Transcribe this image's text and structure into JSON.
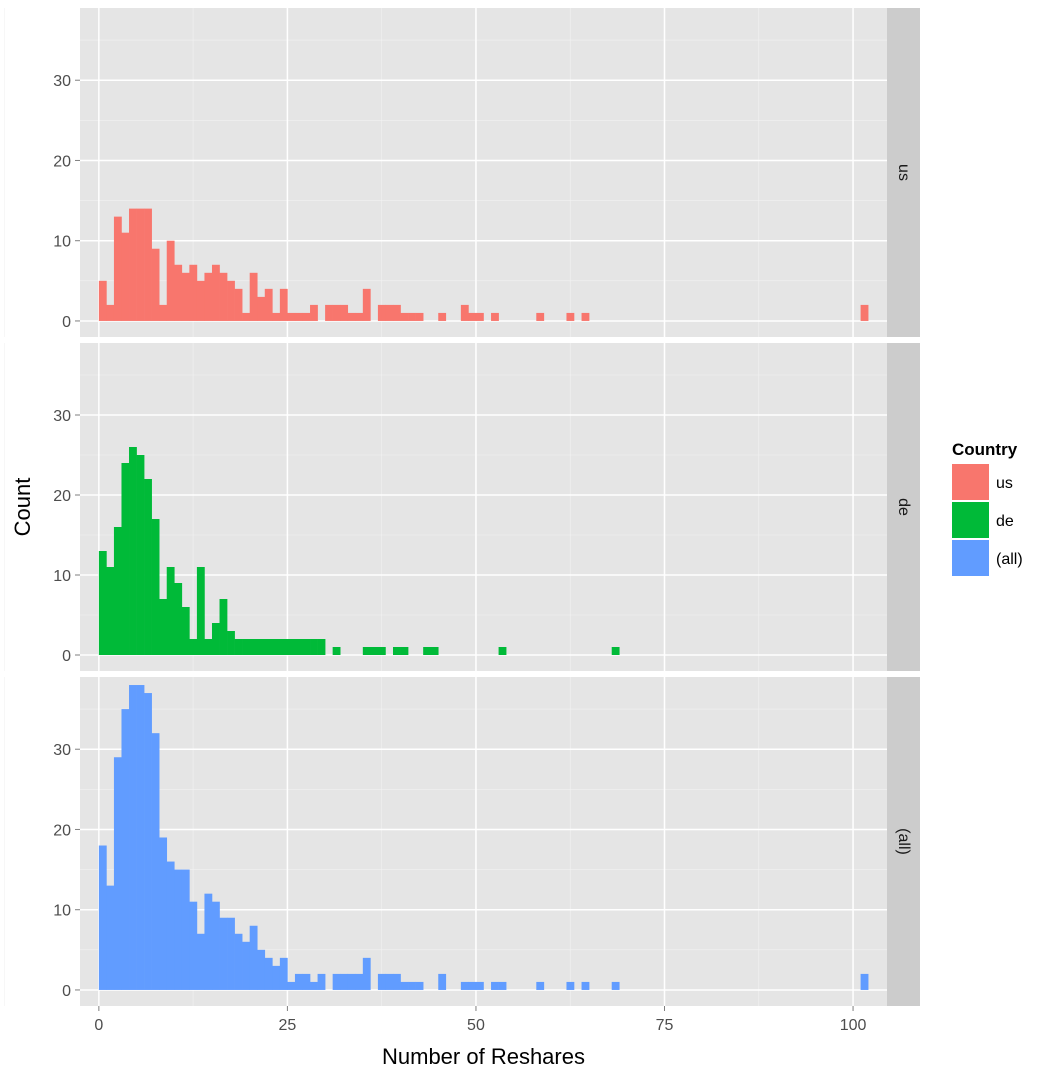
{
  "chart_data": {
    "type": "bar",
    "subtype": "faceted-histogram",
    "xlabel": "Number of Reshares",
    "ylabel": "Count",
    "xlim": [
      -2.5,
      104.5
    ],
    "ylim": [
      -2,
      39
    ],
    "x_ticks": [
      0,
      25,
      50,
      75,
      100
    ],
    "y_ticks": [
      0,
      10,
      20,
      30
    ],
    "bin_width": 1,
    "grid": true,
    "legend": {
      "title": "Country",
      "position": "right",
      "entries": [
        {
          "label": "us",
          "color": "#F8766D"
        },
        {
          "label": "de",
          "color": "#00BA38"
        },
        {
          "label": "(all)",
          "color": "#619CFF"
        }
      ]
    },
    "panels": [
      {
        "strip": "us",
        "color": "#F8766D",
        "bins": [
          [
            0,
            5
          ],
          [
            1,
            2
          ],
          [
            2,
            13
          ],
          [
            3,
            11
          ],
          [
            4,
            14
          ],
          [
            5,
            14
          ],
          [
            6,
            14
          ],
          [
            7,
            9
          ],
          [
            8,
            2
          ],
          [
            9,
            10
          ],
          [
            10,
            7
          ],
          [
            11,
            6
          ],
          [
            12,
            7
          ],
          [
            13,
            5
          ],
          [
            14,
            6
          ],
          [
            15,
            7
          ],
          [
            16,
            6
          ],
          [
            17,
            5
          ],
          [
            18,
            4
          ],
          [
            19,
            1
          ],
          [
            20,
            6
          ],
          [
            21,
            3
          ],
          [
            22,
            4
          ],
          [
            23,
            1
          ],
          [
            24,
            4
          ],
          [
            25,
            1
          ],
          [
            26,
            1
          ],
          [
            27,
            1
          ],
          [
            28,
            2
          ],
          [
            30,
            2
          ],
          [
            31,
            2
          ],
          [
            32,
            2
          ],
          [
            33,
            1
          ],
          [
            34,
            1
          ],
          [
            35,
            4
          ],
          [
            37,
            2
          ],
          [
            38,
            2
          ],
          [
            39,
            2
          ],
          [
            40,
            1
          ],
          [
            41,
            1
          ],
          [
            42,
            1
          ],
          [
            45,
            1
          ],
          [
            48,
            2
          ],
          [
            49,
            1
          ],
          [
            50,
            1
          ],
          [
            52,
            1
          ],
          [
            58,
            1
          ],
          [
            62,
            1
          ],
          [
            64,
            1
          ],
          [
            101,
            2
          ]
        ]
      },
      {
        "strip": "de",
        "color": "#00BA38",
        "bins": [
          [
            0,
            13
          ],
          [
            1,
            11
          ],
          [
            2,
            16
          ],
          [
            3,
            24
          ],
          [
            4,
            26
          ],
          [
            5,
            25
          ],
          [
            6,
            22
          ],
          [
            7,
            17
          ],
          [
            8,
            7
          ],
          [
            9,
            11
          ],
          [
            10,
            9
          ],
          [
            11,
            6
          ],
          [
            12,
            2
          ],
          [
            13,
            11
          ],
          [
            14,
            2
          ],
          [
            15,
            4
          ],
          [
            16,
            7
          ],
          [
            17,
            3
          ],
          [
            18,
            2
          ],
          [
            19,
            2
          ],
          [
            20,
            2
          ],
          [
            21,
            2
          ],
          [
            22,
            2
          ],
          [
            23,
            2
          ],
          [
            24,
            2
          ],
          [
            25,
            2
          ],
          [
            26,
            2
          ],
          [
            27,
            2
          ],
          [
            28,
            2
          ],
          [
            29,
            2
          ],
          [
            31,
            1
          ],
          [
            35,
            1
          ],
          [
            36,
            1
          ],
          [
            37,
            1
          ],
          [
            39,
            1
          ],
          [
            40,
            1
          ],
          [
            43,
            1
          ],
          [
            44,
            1
          ],
          [
            53,
            1
          ],
          [
            68,
            1
          ]
        ]
      },
      {
        "strip": "(all)",
        "color": "#619CFF",
        "bins": [
          [
            0,
            18
          ],
          [
            1,
            13
          ],
          [
            2,
            29
          ],
          [
            3,
            35
          ],
          [
            4,
            38
          ],
          [
            5,
            38
          ],
          [
            6,
            37
          ],
          [
            7,
            32
          ],
          [
            8,
            19
          ],
          [
            9,
            16
          ],
          [
            10,
            15
          ],
          [
            11,
            15
          ],
          [
            12,
            11
          ],
          [
            13,
            7
          ],
          [
            14,
            12
          ],
          [
            15,
            11
          ],
          [
            16,
            9
          ],
          [
            17,
            9
          ],
          [
            18,
            7
          ],
          [
            19,
            6
          ],
          [
            20,
            8
          ],
          [
            21,
            5
          ],
          [
            22,
            4
          ],
          [
            23,
            3
          ],
          [
            24,
            4
          ],
          [
            25,
            1
          ],
          [
            26,
            2
          ],
          [
            27,
            2
          ],
          [
            28,
            1
          ],
          [
            29,
            2
          ],
          [
            31,
            2
          ],
          [
            32,
            2
          ],
          [
            33,
            2
          ],
          [
            34,
            2
          ],
          [
            35,
            4
          ],
          [
            37,
            2
          ],
          [
            38,
            2
          ],
          [
            39,
            2
          ],
          [
            40,
            1
          ],
          [
            41,
            1
          ],
          [
            42,
            1
          ],
          [
            45,
            2
          ],
          [
            48,
            1
          ],
          [
            49,
            1
          ],
          [
            50,
            1
          ],
          [
            52,
            1
          ],
          [
            53,
            1
          ],
          [
            58,
            1
          ],
          [
            62,
            1
          ],
          [
            64,
            1
          ],
          [
            68,
            1
          ],
          [
            101,
            2
          ]
        ]
      }
    ]
  }
}
